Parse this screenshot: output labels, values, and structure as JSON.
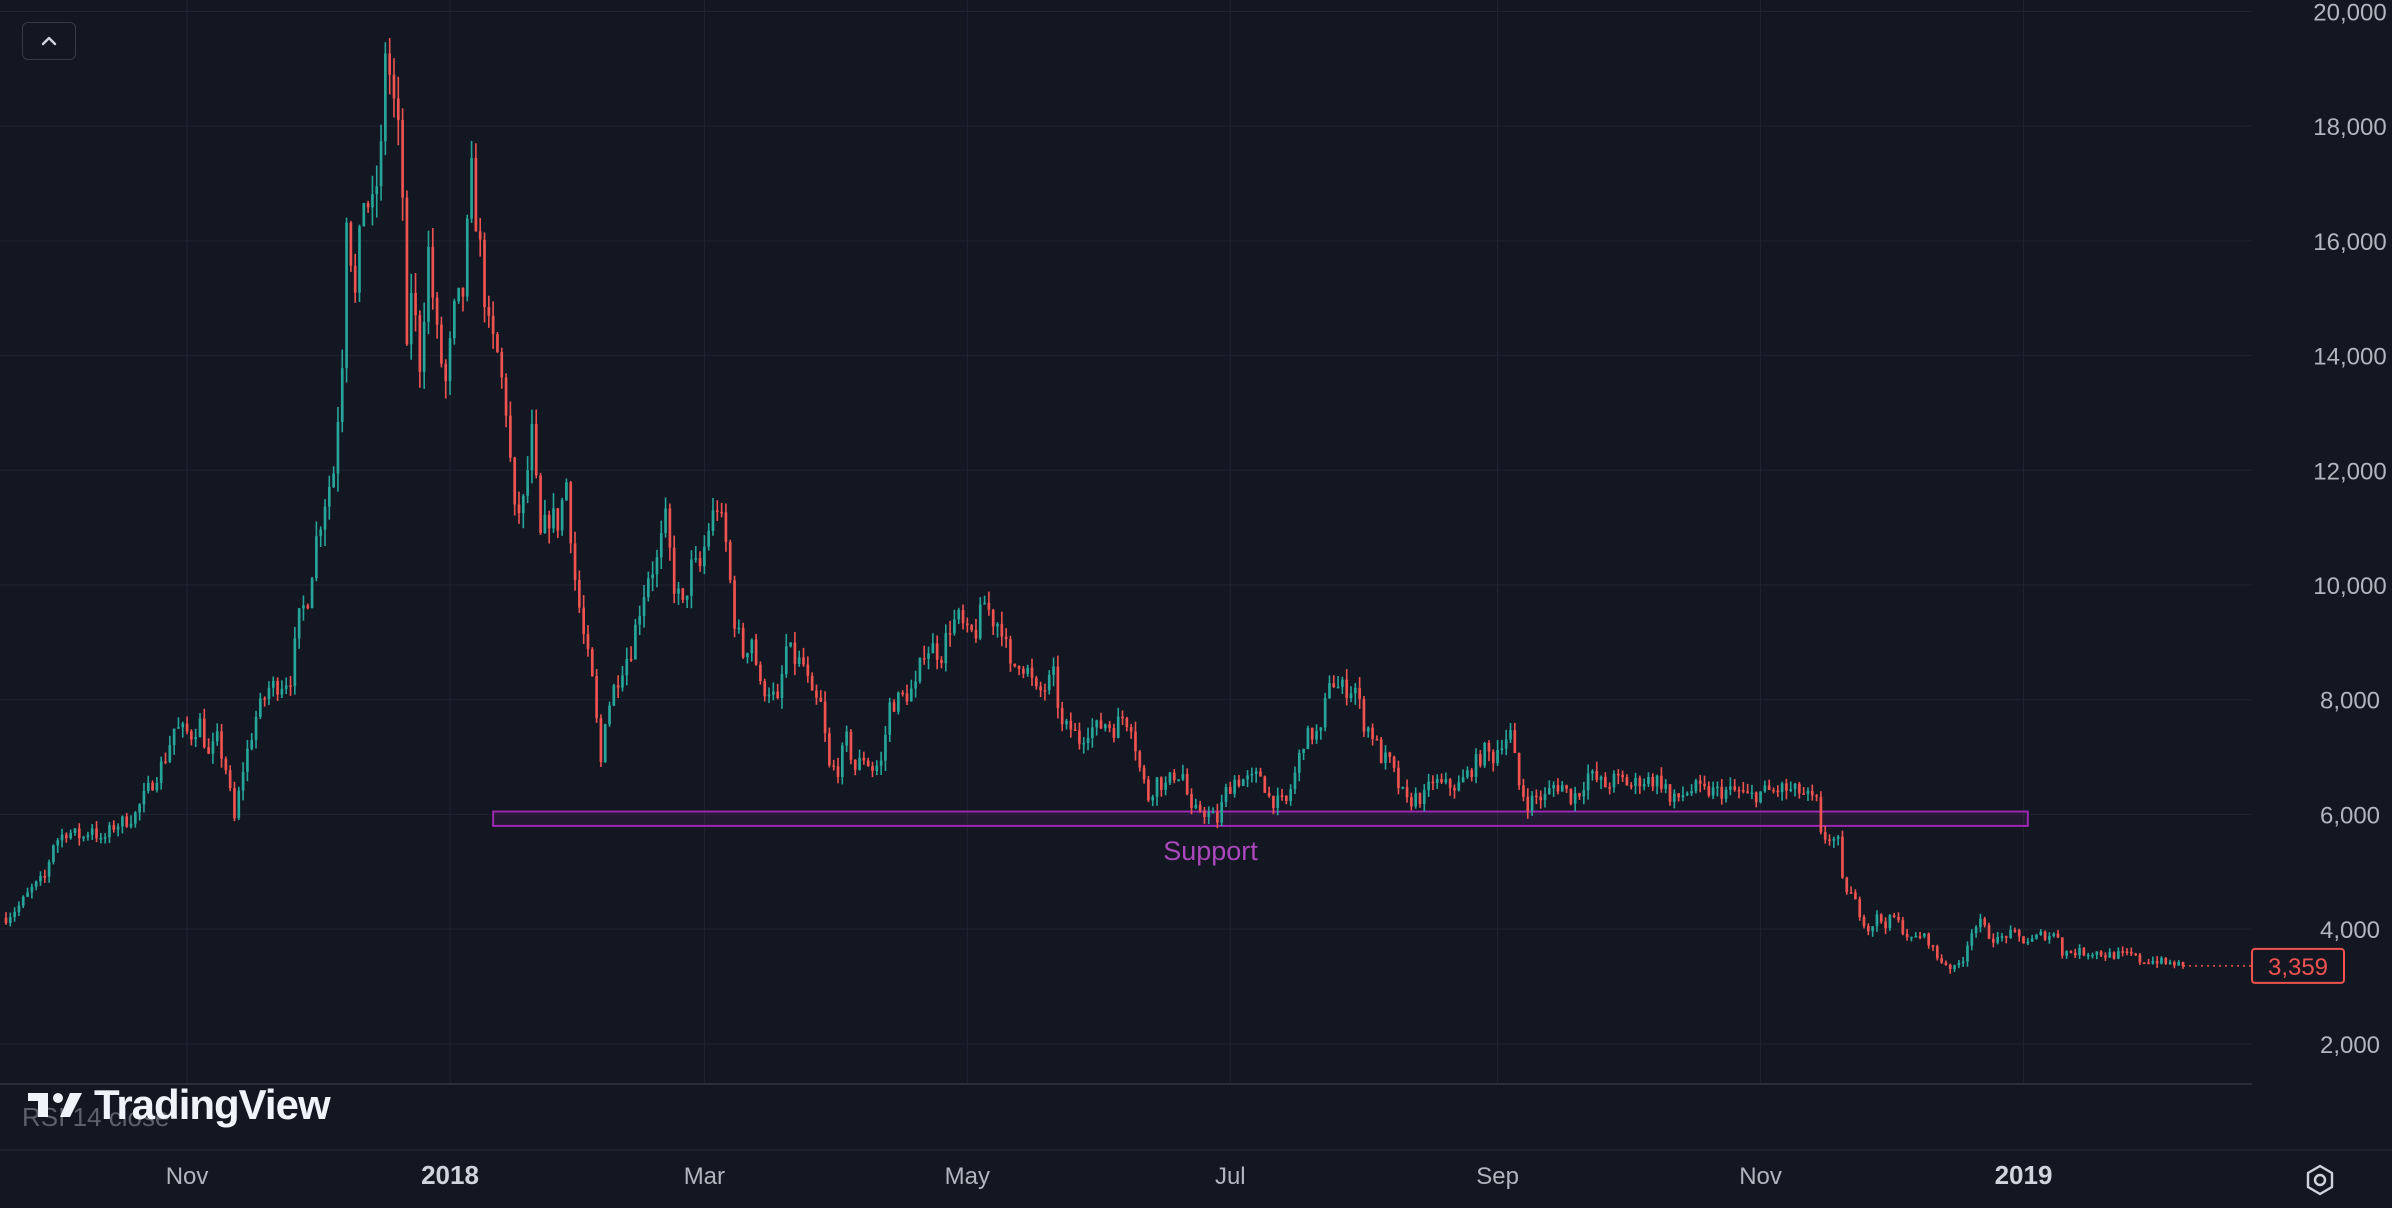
{
  "legend_text": "",
  "indicator_label": "RSI 14 close",
  "logo_text": "TradingView",
  "colors": {
    "background": "#131722",
    "grid": "#1f2433",
    "up": "#26a69a",
    "down": "#ef5350",
    "support": "#9c27b0",
    "support_label": "#ab47bc",
    "axis_text": "#b2b5be",
    "price_tag": "#ef5350"
  },
  "icons": {
    "collapse": "chevron-up-icon",
    "settings": "gear-icon",
    "logo": "tradingview-logo-icon"
  },
  "chart_data": {
    "type": "candlestick",
    "title": "",
    "y_ticks": [
      "2,000",
      "4,000",
      "6,000",
      "8,000",
      "10,000",
      "12,000",
      "14,000",
      "16,000",
      "18,000",
      "20,000"
    ],
    "y_tick_values": [
      2000,
      4000,
      6000,
      8000,
      10000,
      12000,
      14000,
      16000,
      18000,
      20000
    ],
    "ylim": [
      1300,
      20200
    ],
    "x_ticks": [
      {
        "label": "Nov",
        "date": "2017-11-01",
        "bold": false
      },
      {
        "label": "2018",
        "date": "2018-01-01",
        "bold": true
      },
      {
        "label": "Mar",
        "date": "2018-03-01",
        "bold": false
      },
      {
        "label": "May",
        "date": "2018-05-01",
        "bold": false
      },
      {
        "label": "Jul",
        "date": "2018-07-01",
        "bold": false
      },
      {
        "label": "Sep",
        "date": "2018-09-01",
        "bold": false
      },
      {
        "label": "Nov",
        "date": "2018-11-01",
        "bold": false
      },
      {
        "label": "2019",
        "date": "2019-01-01",
        "bold": true
      }
    ],
    "xlim": [
      "2017-09-20",
      "2019-02-23"
    ],
    "last_price": 3359,
    "last_price_label": "3,359",
    "support_zone": {
      "label": "Support",
      "from": "2018-01-11",
      "to": "2019-01-02",
      "low": 5800,
      "high": 6050
    },
    "close_path": [
      [
        "2017-09-20",
        4200
      ],
      [
        "2017-09-23",
        4400
      ],
      [
        "2017-09-26",
        4700
      ],
      [
        "2017-09-29",
        4900
      ],
      [
        "2017-10-01",
        5500
      ],
      [
        "2017-10-04",
        5700
      ],
      [
        "2017-10-08",
        5600
      ],
      [
        "2017-10-10",
        5800
      ],
      [
        "2017-10-12",
        5500
      ],
      [
        "2017-10-15",
        5800
      ],
      [
        "2017-10-18",
        5900
      ],
      [
        "2017-10-20",
        6000
      ],
      [
        "2017-10-22",
        6300
      ],
      [
        "2017-10-25",
        6700
      ],
      [
        "2017-10-27",
        7000
      ],
      [
        "2017-10-29",
        7500
      ],
      [
        "2017-11-02",
        7400
      ],
      [
        "2017-11-04",
        7600
      ],
      [
        "2017-11-06",
        7000
      ],
      [
        "2017-11-08",
        7300
      ],
      [
        "2017-11-10",
        6800
      ],
      [
        "2017-11-12",
        5900
      ],
      [
        "2017-11-14",
        6800
      ],
      [
        "2017-11-17",
        7700
      ],
      [
        "2017-11-20",
        8200
      ],
      [
        "2017-11-23",
        8300
      ],
      [
        "2017-11-25",
        8400
      ],
      [
        "2017-11-27",
        9400
      ],
      [
        "2017-11-29",
        9800
      ],
      [
        "2017-12-01",
        10800
      ],
      [
        "2017-12-03",
        11500
      ],
      [
        "2017-12-05",
        12000
      ],
      [
        "2017-12-07",
        14000
      ],
      [
        "2017-12-08",
        16600
      ],
      [
        "2017-12-10",
        15000
      ],
      [
        "2017-12-12",
        16800
      ],
      [
        "2017-12-14",
        16500
      ],
      [
        "2017-12-16",
        17500
      ],
      [
        "2017-12-17",
        19400
      ],
      [
        "2017-12-18",
        18900
      ],
      [
        "2017-12-20",
        17800
      ],
      [
        "2017-12-21",
        16800
      ],
      [
        "2017-12-22",
        13900
      ],
      [
        "2017-12-23",
        15200
      ],
      [
        "2017-12-25",
        13900
      ],
      [
        "2017-12-27",
        15800
      ],
      [
        "2017-12-29",
        14300
      ],
      [
        "2017-12-31",
        13500
      ],
      [
        "2018-01-02",
        14700
      ],
      [
        "2018-01-04",
        15100
      ],
      [
        "2018-01-06",
        17100
      ],
      [
        "2018-01-08",
        15800
      ],
      [
        "2018-01-10",
        14400
      ],
      [
        "2018-01-12",
        14000
      ],
      [
        "2018-01-14",
        13100
      ],
      [
        "2018-01-16",
        11200
      ],
      [
        "2018-01-18",
        11400
      ],
      [
        "2018-01-20",
        12600
      ],
      [
        "2018-01-22",
        10800
      ],
      [
        "2018-01-24",
        11200
      ],
      [
        "2018-01-26",
        11100
      ],
      [
        "2018-01-28",
        11800
      ],
      [
        "2018-01-30",
        10100
      ],
      [
        "2018-02-01",
        9100
      ],
      [
        "2018-02-03",
        8300
      ],
      [
        "2018-02-05",
        6900
      ],
      [
        "2018-02-06",
        7700
      ],
      [
        "2018-02-08",
        8200
      ],
      [
        "2018-02-10",
        8600
      ],
      [
        "2018-02-12",
        8900
      ],
      [
        "2018-02-14",
        9600
      ],
      [
        "2018-02-16",
        10200
      ],
      [
        "2018-02-18",
        10400
      ],
      [
        "2018-02-20",
        11100
      ],
      [
        "2018-02-22",
        10000
      ],
      [
        "2018-02-24",
        9600
      ],
      [
        "2018-02-26",
        10300
      ],
      [
        "2018-02-28",
        10300
      ],
      [
        "2018-03-02",
        11000
      ],
      [
        "2018-03-04",
        11400
      ],
      [
        "2018-03-06",
        10700
      ],
      [
        "2018-03-08",
        9400
      ],
      [
        "2018-03-10",
        8800
      ],
      [
        "2018-03-12",
        9100
      ],
      [
        "2018-03-14",
        8200
      ],
      [
        "2018-03-16",
        8200
      ],
      [
        "2018-03-18",
        7900
      ],
      [
        "2018-03-20",
        8900
      ],
      [
        "2018-03-22",
        8700
      ],
      [
        "2018-03-24",
        8600
      ],
      [
        "2018-03-26",
        8000
      ],
      [
        "2018-03-28",
        7900
      ],
      [
        "2018-03-30",
        6800
      ],
      [
        "2018-04-01",
        6800
      ],
      [
        "2018-04-03",
        7300
      ],
      [
        "2018-04-05",
        6800
      ],
      [
        "2018-04-07",
        7000
      ],
      [
        "2018-04-09",
        6800
      ],
      [
        "2018-04-11",
        6900
      ],
      [
        "2018-04-13",
        7900
      ],
      [
        "2018-04-15",
        8000
      ],
      [
        "2018-04-17",
        8100
      ],
      [
        "2018-04-19",
        8200
      ],
      [
        "2018-04-21",
        8900
      ],
      [
        "2018-04-23",
        8900
      ],
      [
        "2018-04-25",
        8800
      ],
      [
        "2018-04-27",
        9300
      ],
      [
        "2018-04-29",
        9400
      ],
      [
        "2018-05-01",
        9100
      ],
      [
        "2018-05-03",
        9200
      ],
      [
        "2018-05-05",
        9700
      ],
      [
        "2018-05-07",
        9400
      ],
      [
        "2018-05-09",
        9300
      ],
      [
        "2018-05-11",
        8500
      ],
      [
        "2018-05-13",
        8700
      ],
      [
        "2018-05-15",
        8500
      ],
      [
        "2018-05-17",
        8100
      ],
      [
        "2018-05-19",
        8200
      ],
      [
        "2018-05-21",
        8400
      ],
      [
        "2018-05-23",
        7500
      ],
      [
        "2018-05-25",
        7500
      ],
      [
        "2018-05-27",
        7300
      ],
      [
        "2018-05-29",
        7500
      ],
      [
        "2018-05-31",
        7500
      ],
      [
        "2018-06-02",
        7600
      ],
      [
        "2018-06-04",
        7500
      ],
      [
        "2018-06-06",
        7700
      ],
      [
        "2018-06-08",
        7600
      ],
      [
        "2018-06-10",
        6800
      ],
      [
        "2018-06-12",
        6300
      ],
      [
        "2018-06-14",
        6600
      ],
      [
        "2018-06-16",
        6500
      ],
      [
        "2018-06-18",
        6700
      ],
      [
        "2018-06-20",
        6700
      ],
      [
        "2018-06-22",
        6000
      ],
      [
        "2018-06-24",
        6100
      ],
      [
        "2018-06-26",
        6000
      ],
      [
        "2018-06-28",
        5900
      ],
      [
        "2018-06-30",
        6400
      ],
      [
        "2018-07-02",
        6600
      ],
      [
        "2018-07-04",
        6600
      ],
      [
        "2018-07-06",
        6600
      ],
      [
        "2018-07-08",
        6700
      ],
      [
        "2018-07-10",
        6300
      ],
      [
        "2018-07-12",
        6200
      ],
      [
        "2018-07-14",
        6200
      ],
      [
        "2018-07-16",
        6700
      ],
      [
        "2018-07-18",
        7300
      ],
      [
        "2018-07-20",
        7400
      ],
      [
        "2018-07-22",
        7400
      ],
      [
        "2018-07-24",
        8400
      ],
      [
        "2018-07-26",
        8200
      ],
      [
        "2018-07-28",
        8200
      ],
      [
        "2018-07-30",
        8200
      ],
      [
        "2018-08-01",
        7600
      ],
      [
        "2018-08-03",
        7400
      ],
      [
        "2018-08-05",
        7000
      ],
      [
        "2018-08-07",
        6900
      ],
      [
        "2018-08-09",
        6500
      ],
      [
        "2018-08-11",
        6200
      ],
      [
        "2018-08-13",
        6300
      ],
      [
        "2018-08-15",
        6300
      ],
      [
        "2018-08-17",
        6600
      ],
      [
        "2018-08-19",
        6500
      ],
      [
        "2018-08-21",
        6500
      ],
      [
        "2018-08-23",
        6500
      ],
      [
        "2018-08-25",
        6700
      ],
      [
        "2018-08-27",
        6900
      ],
      [
        "2018-08-29",
        7100
      ],
      [
        "2018-08-31",
        7000
      ],
      [
        "2018-09-02",
        7300
      ],
      [
        "2018-09-04",
        7400
      ],
      [
        "2018-09-06",
        6500
      ],
      [
        "2018-09-08",
        6200
      ],
      [
        "2018-09-10",
        6300
      ],
      [
        "2018-09-12",
        6300
      ],
      [
        "2018-09-14",
        6500
      ],
      [
        "2018-09-16",
        6500
      ],
      [
        "2018-09-18",
        6300
      ],
      [
        "2018-09-20",
        6400
      ],
      [
        "2018-09-22",
        6700
      ],
      [
        "2018-09-24",
        6600
      ],
      [
        "2018-09-26",
        6500
      ],
      [
        "2018-09-28",
        6600
      ],
      [
        "2018-09-30",
        6600
      ],
      [
        "2018-10-02",
        6500
      ],
      [
        "2018-10-04",
        6600
      ],
      [
        "2018-10-06",
        6600
      ],
      [
        "2018-10-08",
        6600
      ],
      [
        "2018-10-10",
        6500
      ],
      [
        "2018-10-11",
        6200
      ],
      [
        "2018-10-13",
        6300
      ],
      [
        "2018-10-15",
        6400
      ],
      [
        "2018-10-17",
        6450
      ],
      [
        "2018-10-19",
        6400
      ],
      [
        "2018-10-21",
        6400
      ],
      [
        "2018-10-23",
        6400
      ],
      [
        "2018-10-25",
        6400
      ],
      [
        "2018-10-27",
        6400
      ],
      [
        "2018-10-29",
        6300
      ],
      [
        "2018-10-31",
        6350
      ],
      [
        "2018-11-02",
        6400
      ],
      [
        "2018-11-04",
        6400
      ],
      [
        "2018-11-06",
        6450
      ],
      [
        "2018-11-08",
        6400
      ],
      [
        "2018-11-10",
        6400
      ],
      [
        "2018-11-12",
        6300
      ],
      [
        "2018-11-14",
        6200
      ],
      [
        "2018-11-15",
        5600
      ],
      [
        "2018-11-17",
        5600
      ],
      [
        "2018-11-19",
        5500
      ],
      [
        "2018-11-20",
        4800
      ],
      [
        "2018-11-22",
        4600
      ],
      [
        "2018-11-24",
        4300
      ],
      [
        "2018-11-26",
        4000
      ],
      [
        "2018-11-28",
        4200
      ],
      [
        "2018-11-30",
        4100
      ],
      [
        "2018-12-02",
        4200
      ],
      [
        "2018-12-04",
        4000
      ],
      [
        "2018-12-06",
        3800
      ],
      [
        "2018-12-08",
        3900
      ],
      [
        "2018-12-10",
        3800
      ],
      [
        "2018-12-12",
        3500
      ],
      [
        "2018-12-14",
        3400
      ],
      [
        "2018-12-16",
        3300
      ],
      [
        "2018-12-18",
        3500
      ],
      [
        "2018-12-20",
        4000
      ],
      [
        "2018-12-22",
        4100
      ],
      [
        "2018-12-24",
        3900
      ],
      [
        "2018-12-26",
        3800
      ],
      [
        "2018-12-28",
        3900
      ],
      [
        "2018-12-30",
        3900
      ],
      [
        "2019-01-01",
        3800
      ],
      [
        "2019-01-03",
        3800
      ],
      [
        "2019-01-05",
        3900
      ],
      [
        "2019-01-07",
        3900
      ],
      [
        "2019-01-09",
        3900
      ],
      [
        "2019-01-10",
        3600
      ],
      [
        "2019-01-12",
        3600
      ],
      [
        "2019-01-14",
        3600
      ],
      [
        "2019-01-16",
        3600
      ],
      [
        "2019-01-18",
        3600
      ],
      [
        "2019-01-20",
        3550
      ],
      [
        "2019-01-22",
        3550
      ],
      [
        "2019-01-24",
        3550
      ],
      [
        "2019-01-26",
        3550
      ],
      [
        "2019-01-28",
        3450
      ],
      [
        "2019-01-30",
        3450
      ],
      [
        "2019-02-01",
        3450
      ],
      [
        "2019-02-03",
        3400
      ],
      [
        "2019-02-05",
        3400
      ],
      [
        "2019-02-07",
        3359
      ]
    ]
  }
}
